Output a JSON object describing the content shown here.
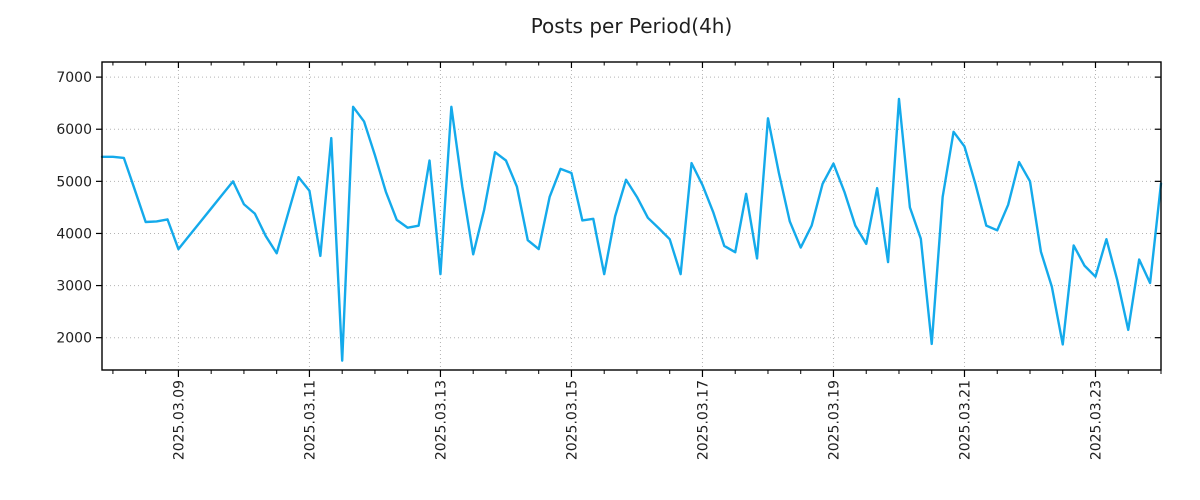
{
  "title": "Posts per Period(4h)",
  "chart_data": {
    "type": "line",
    "title": "Posts per Period(4h)",
    "period": "4h",
    "x_start": "2025.03.07 20:00",
    "x_end": "2025.03.24 00:00",
    "interval_hours": 4,
    "values": [
      5470,
      5470,
      5450,
      4840,
      4220,
      4230,
      4270,
      3700,
      3960,
      4220,
      4480,
      4740,
      5000,
      4560,
      4380,
      3950,
      3620,
      4350,
      5080,
      4820,
      3570,
      5830,
      1560,
      6430,
      6150,
      5500,
      4800,
      4260,
      4110,
      4150,
      5400,
      3220,
      6430,
      4900,
      3600,
      4450,
      5560,
      5400,
      4900,
      3870,
      3700,
      4700,
      5240,
      5160,
      4250,
      4280,
      3220,
      4330,
      5030,
      4700,
      4300,
      4100,
      3890,
      3220,
      5350,
      4930,
      4400,
      3760,
      3640,
      4760,
      3520,
      6210,
      5160,
      4230,
      3730,
      4150,
      4950,
      5340,
      4800,
      4150,
      3800,
      4870,
      3450,
      6580,
      4500,
      3900,
      1880,
      4700,
      5950,
      5670,
      4950,
      4150,
      4060,
      4550,
      5370,
      5000,
      3650,
      2980,
      1870,
      3770,
      3380,
      3170,
      3890,
      3100,
      2150,
      3500,
      3050,
      4960
    ],
    "x_tick_labels": [
      "2025.03.09",
      "2025.03.11",
      "2025.03.13",
      "2025.03.15",
      "2025.03.17",
      "2025.03.19",
      "2025.03.21",
      "2025.03.23"
    ],
    "x_tick_indices": [
      7,
      19,
      31,
      43,
      55,
      67,
      79,
      91
    ],
    "minor_tick_every_points": 3,
    "y_ticks": [
      2000,
      3000,
      4000,
      5000,
      6000,
      7000
    ],
    "ylim": [
      1380,
      7290
    ],
    "grid": true,
    "grid_style": "dotted",
    "legend": false,
    "line_color": "#14aaeb",
    "grid_color": "#b3b3b3",
    "axis_color": "#000000",
    "label_color": "#1f1f1f"
  }
}
